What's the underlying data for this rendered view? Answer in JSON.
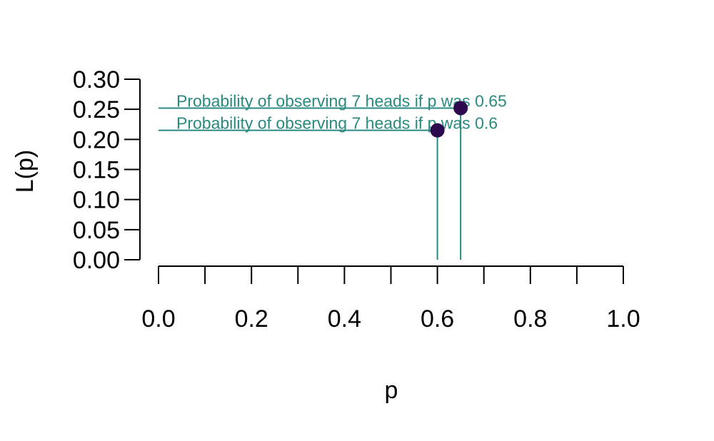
{
  "chart_data": {
    "type": "scatter",
    "title": "",
    "xlabel": "p",
    "ylabel": "L(p)",
    "xlim": [
      0,
      1
    ],
    "ylim": [
      0,
      0.3
    ],
    "x_ticks": [
      0,
      0.1,
      0.2,
      0.3,
      0.4,
      0.5,
      0.6,
      0.7,
      0.8,
      0.9,
      1.0
    ],
    "x_tick_labels": [
      "0.0",
      "0.2",
      "0.4",
      "0.6",
      "0.8",
      "1.0"
    ],
    "x_tick_label_values": [
      0,
      0.2,
      0.4,
      0.6,
      0.8,
      1.0
    ],
    "y_ticks": [
      0,
      0.05,
      0.1,
      0.15,
      0.2,
      0.25,
      0.3
    ],
    "y_tick_labels": [
      "0.00",
      "0.05",
      "0.10",
      "0.15",
      "0.20",
      "0.25",
      "0.30"
    ],
    "grid": false,
    "points": [
      {
        "x": 0.6,
        "y": 0.215
      },
      {
        "x": 0.65,
        "y": 0.252
      }
    ],
    "annotations": [
      {
        "text": "Probability of observing 7 heads if p was  0.65",
        "x": 0.65,
        "y": 0.252
      },
      {
        "text": "Probability of observing 7 heads if p was  0.6",
        "x": 0.6,
        "y": 0.215
      }
    ],
    "colors": {
      "point": "#2d0a4e",
      "guide": "#2a8a80",
      "annotation": "#2a8a80",
      "axis": "#000000"
    }
  }
}
